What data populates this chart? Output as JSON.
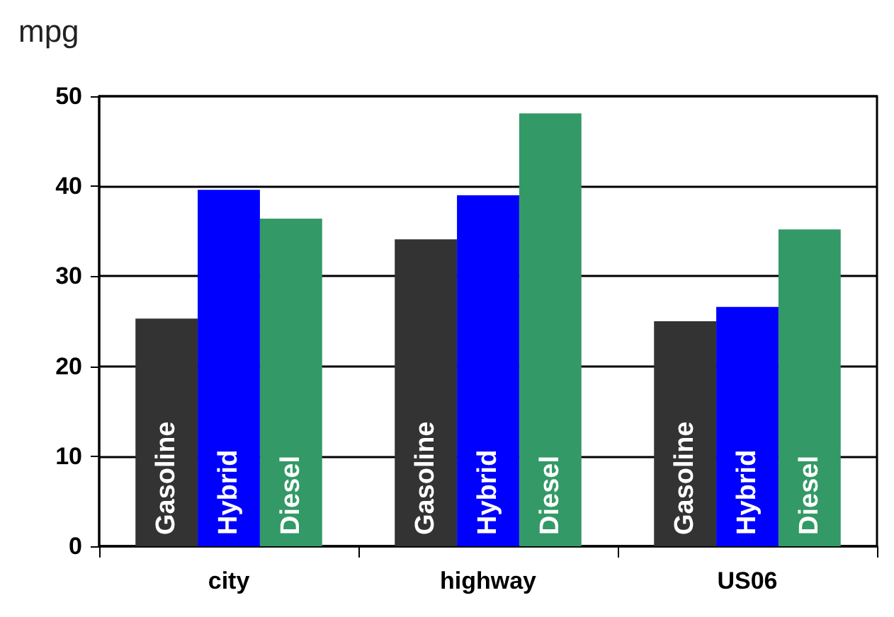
{
  "chart_data": {
    "type": "bar",
    "ylabel": "mpg",
    "categories": [
      "city",
      "highway",
      "US06"
    ],
    "series": [
      {
        "name": "Gasoline",
        "color": "#333333",
        "values": [
          25.3,
          34.1,
          25.0
        ]
      },
      {
        "name": "Hybrid",
        "color": "#0000ff",
        "values": [
          39.6,
          39.0,
          26.6
        ]
      },
      {
        "name": "Diesel",
        "color": "#339966",
        "values": [
          36.4,
          48.1,
          35.2
        ]
      }
    ],
    "ylim": [
      0,
      50
    ],
    "yticks": [
      0,
      10,
      20,
      30,
      40,
      50
    ],
    "grid": "y",
    "legend": false
  }
}
